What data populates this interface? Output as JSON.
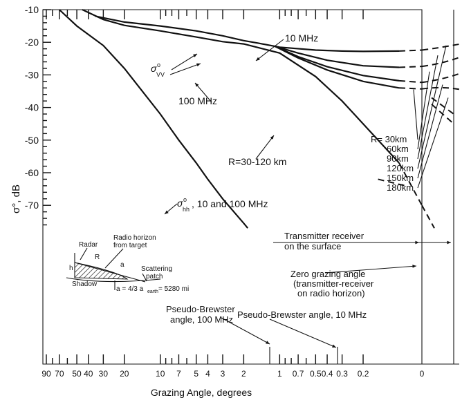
{
  "chart_data": {
    "type": "line",
    "title": "",
    "xlabel": "Grazing Angle, degrees",
    "ylabel": "σ°, dB",
    "x_scale": "log (reversed)",
    "x_ticks": [
      "90",
      "70",
      "50",
      "40",
      "30",
      "20",
      "10",
      "7",
      "5",
      "4",
      "3",
      "2",
      "1",
      "0.7",
      "0.5",
      "0.4",
      "0.3",
      "0.2",
      "0"
    ],
    "y_ticks": [
      "-10",
      "-20",
      "-30",
      "-40",
      "-50",
      "-60",
      "-70"
    ],
    "ylim": [
      -77,
      -10
    ],
    "grid": false,
    "series": [
      {
        "name": "σ°vv 10 MHz",
        "points": [
          [
            35,
            -12
          ],
          [
            20,
            -13.8
          ],
          [
            10,
            -15
          ],
          [
            5,
            -16.5
          ],
          [
            3,
            -18
          ],
          [
            2,
            -19.5
          ],
          [
            1.5,
            -20.3
          ],
          [
            1,
            -21.5
          ],
          [
            0.5,
            -22.4
          ],
          [
            0.3,
            -22.7
          ],
          [
            0.2,
            -22.8
          ],
          [
            0.1,
            -22.7
          ],
          [
            0,
            -22.4
          ]
        ]
      },
      {
        "name": "σ°vv 100 MHz",
        "points": [
          [
            45,
            -10
          ],
          [
            30,
            -13
          ],
          [
            20,
            -14.8
          ],
          [
            10,
            -16.5
          ],
          [
            5,
            -18.4
          ],
          [
            3,
            -19.8
          ],
          [
            2,
            -20.5
          ],
          [
            1,
            -23.3
          ],
          [
            0.5,
            -30.5
          ],
          [
            0.3,
            -38
          ],
          [
            0.2,
            -45
          ],
          [
            0.1,
            -57
          ],
          [
            0,
            -70
          ]
        ]
      },
      {
        "name": "σ°hh 10 and 100 MHz",
        "points": [
          [
            70,
            -10
          ],
          [
            50,
            -15
          ],
          [
            30,
            -21
          ],
          [
            20,
            -28
          ],
          [
            10,
            -42
          ],
          [
            7,
            -50
          ],
          [
            5,
            -57
          ],
          [
            4,
            -62
          ],
          [
            3,
            -68
          ],
          [
            2,
            -75.5
          ],
          [
            1.85,
            -77
          ]
        ]
      },
      {
        "name": "R=30 km",
        "points": [
          [
            1.1,
            -21.2
          ],
          [
            0.7,
            -23.3
          ],
          [
            0.4,
            -25.5
          ],
          [
            0.2,
            -27.2
          ],
          [
            0.1,
            -27.7
          ],
          [
            0,
            -27.4
          ]
        ]
      },
      {
        "name": "R=60 km",
        "points": [
          [
            1.1,
            -21.2
          ],
          [
            0.7,
            -24.4
          ],
          [
            0.4,
            -27.5
          ],
          [
            0.2,
            -30.2
          ],
          [
            0.1,
            -31.8
          ],
          [
            0,
            -32.3
          ]
        ]
      },
      {
        "name": "R=120 km",
        "points": [
          [
            1.1,
            -21.2
          ],
          [
            0.7,
            -24.8
          ],
          [
            0.4,
            -28.5
          ],
          [
            0.2,
            -32
          ],
          [
            0.1,
            -34
          ],
          [
            0,
            -34.3
          ]
        ]
      }
    ],
    "annotations": {
      "label_10mhz": "10 MHz",
      "label_100mhz": "100 MHz",
      "label_vv_sigma": "σ",
      "label_vv_sup": "o",
      "label_vv_sub": "VV",
      "label_hh_sigma": "σ",
      "label_hh_sup": "o",
      "label_hh_sub": "hh",
      "label_hh_rest": ", 10 and 100 MHz",
      "label_range": "R=30-120 km",
      "r_list": [
        "R= 30km",
        "60km",
        "90km",
        "120km",
        "150km",
        "180km"
      ],
      "tx_surface_1": "Transmitter receiver",
      "tx_surface_2": "on the surface",
      "zero_angle_1": "Zero grazing angle",
      "zero_angle_2": "(transmitter-receiver",
      "zero_angle_3": "on radio horizon)",
      "brewster_100_1": "Pseudo-Brewster",
      "brewster_100_2": "angle, 100 MHz",
      "brewster_10": "Pseudo-Brewster angle, 10 MHz",
      "inset": {
        "radar": "Radar",
        "horizon_1": "Radio horizon",
        "horizon_2": "from target",
        "r": "R",
        "h": "h",
        "a": "a",
        "shadow": "Shadow",
        "scattering_1": "Scattering",
        "scattering_2": "patch",
        "formula": "a = 4/3 a",
        "formula_sub": "earth",
        "formula_rest": " = 5280 mi"
      }
    }
  }
}
